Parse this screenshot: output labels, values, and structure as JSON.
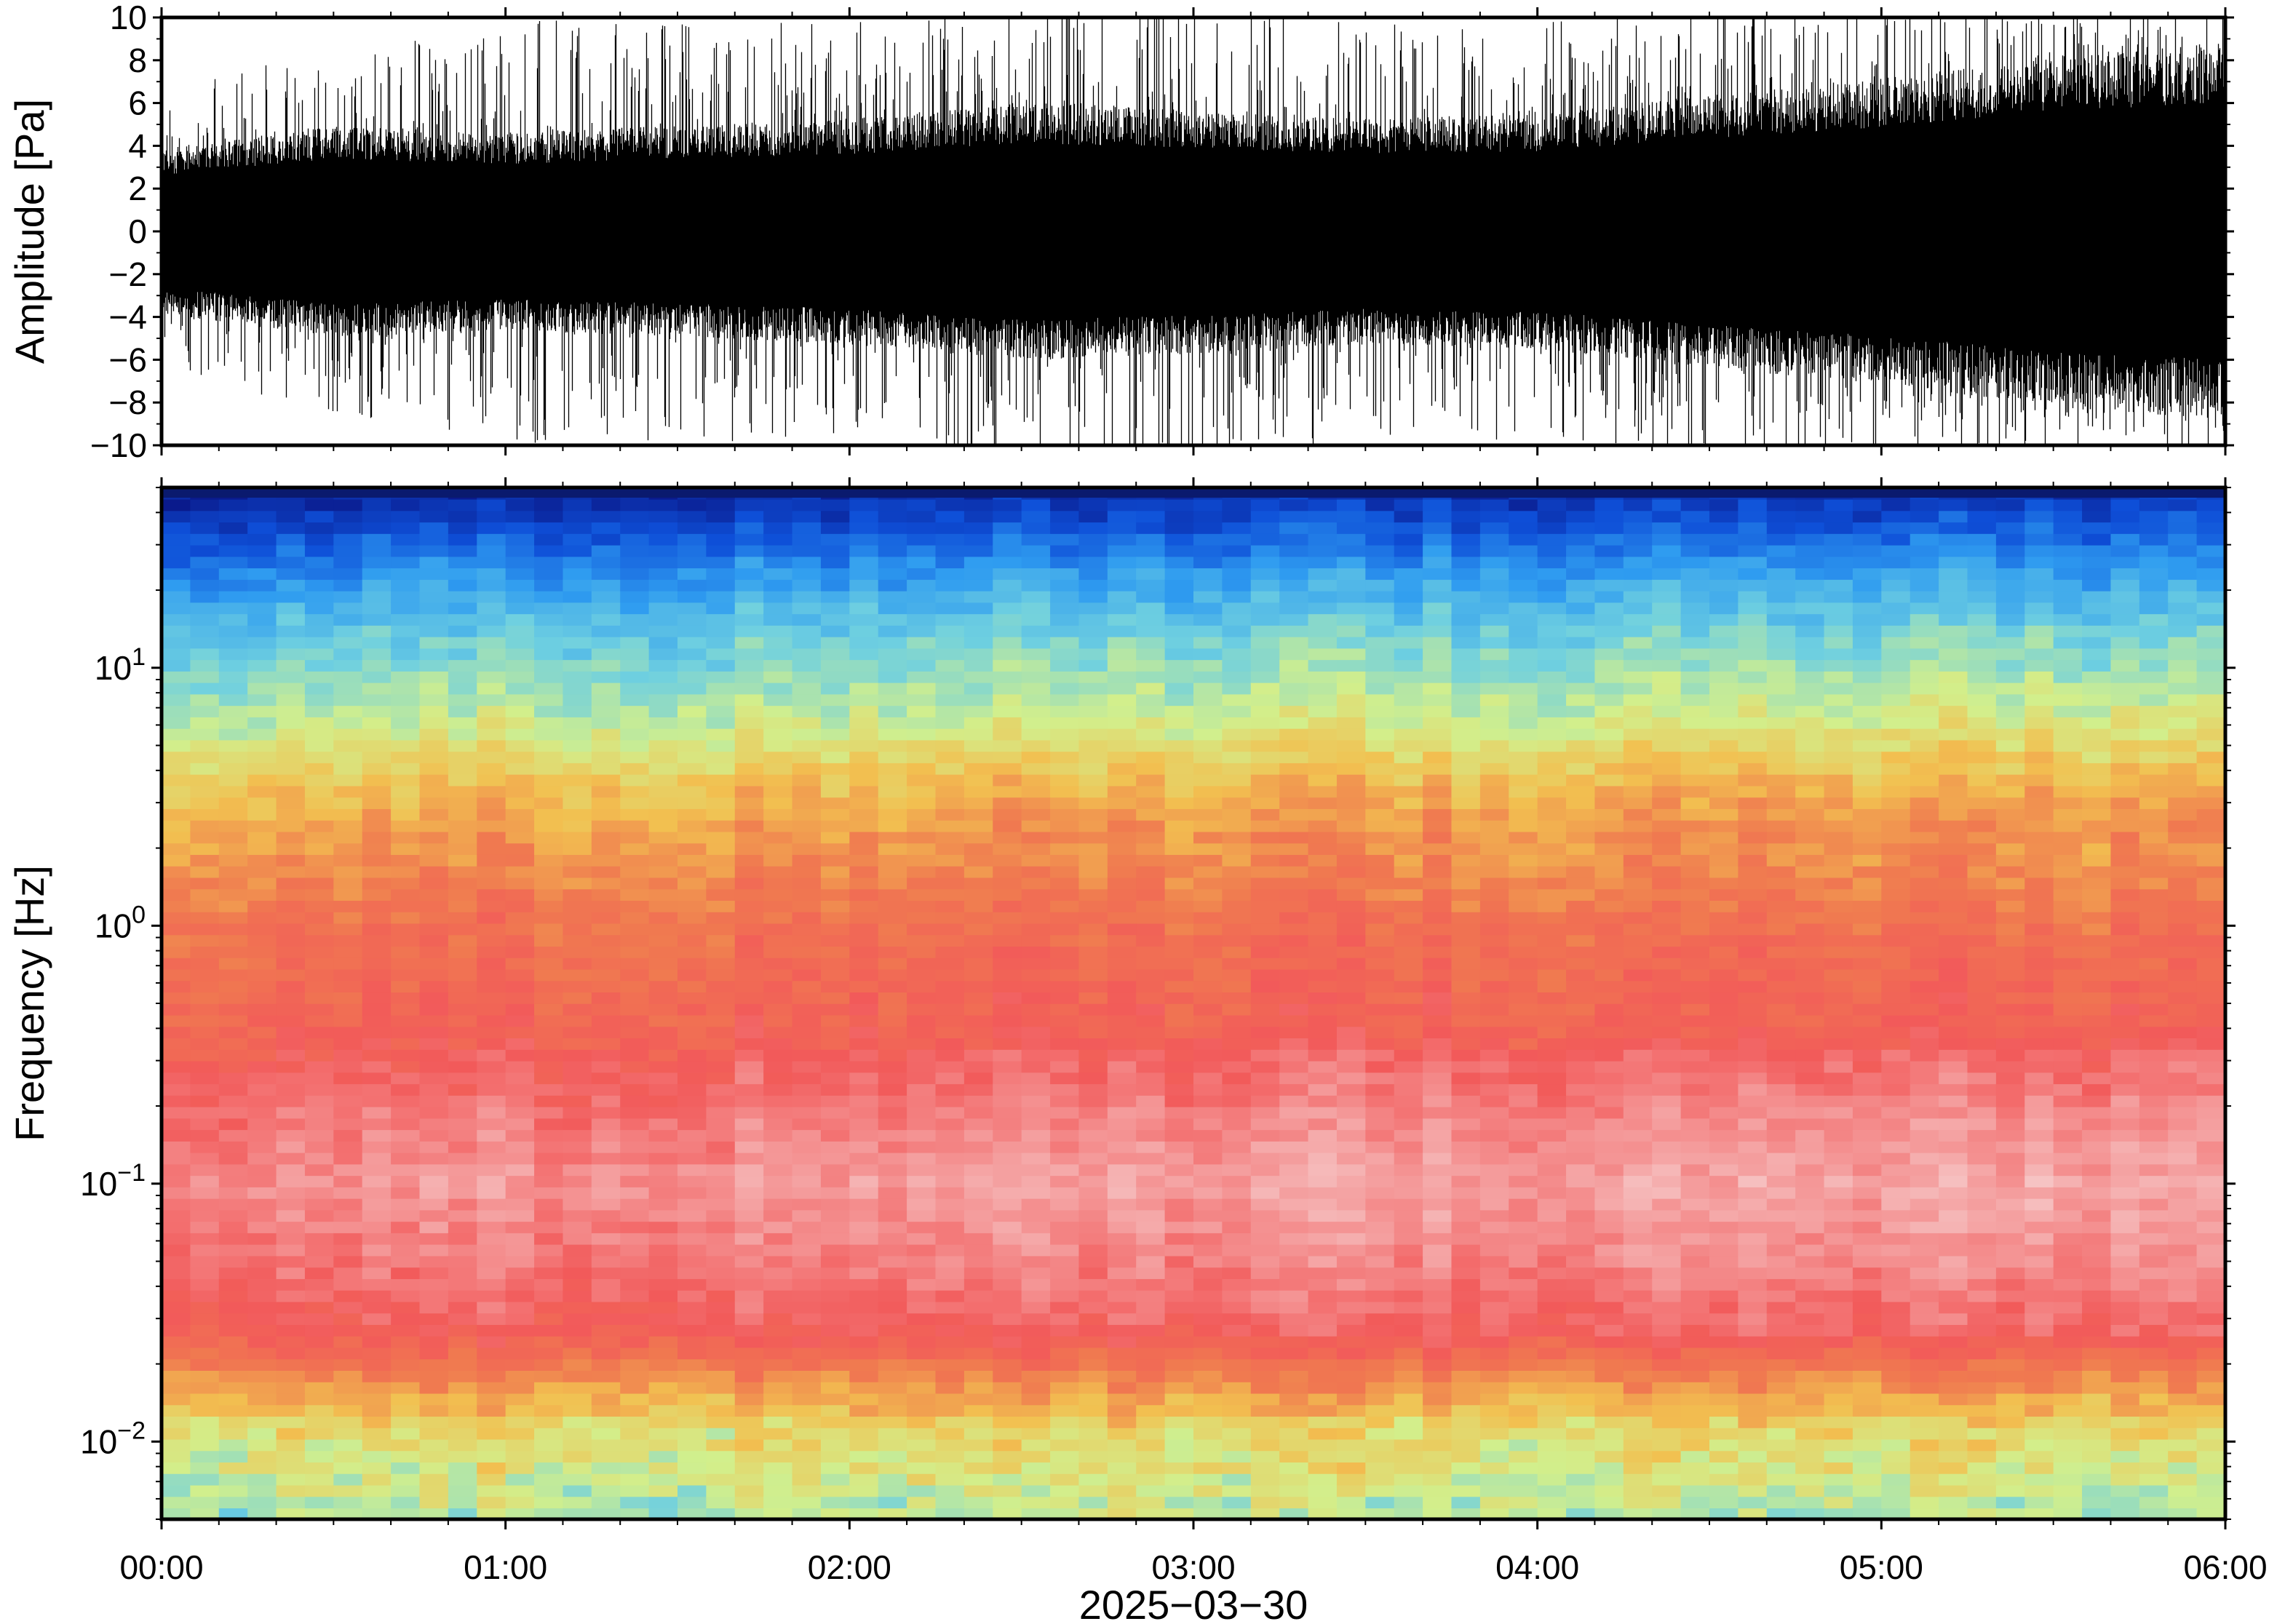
{
  "chart_data": [
    {
      "type": "line",
      "name": "waveform",
      "ylabel": "Amplitude [Pa]",
      "ylim": [
        -10,
        10
      ],
      "y_ticks": [
        "10",
        "8",
        "6",
        "4",
        "2",
        "0",
        "−2",
        "−4",
        "−6",
        "−8",
        "−10"
      ],
      "y_tick_values": [
        10,
        8,
        6,
        4,
        2,
        0,
        -2,
        -4,
        -6,
        -8,
        -10
      ],
      "x_range_hours": [
        0,
        6
      ],
      "line_color": "#000000",
      "envelope_hours": [
        0,
        0.5,
        1.0,
        1.5,
        2.0,
        2.5,
        3.0,
        3.5,
        4.0,
        4.5,
        5.0,
        5.5,
        6.0
      ],
      "envelope_pa": [
        3.5,
        4.5,
        4.2,
        4.5,
        4.8,
        5.5,
        5.2,
        4.8,
        5.0,
        5.8,
        6.5,
        7.5,
        8.0
      ],
      "peak_envelope_pa": [
        6,
        8,
        9,
        9,
        9,
        10,
        10,
        9,
        9,
        10,
        10,
        10,
        10
      ]
    },
    {
      "type": "heatmap",
      "name": "spectrogram",
      "ylabel": "Frequency [Hz]",
      "yscale": "log",
      "ylim_hz": [
        0.005,
        50
      ],
      "y_ticks": [
        {
          "base": "10",
          "exp": "1",
          "value": 10
        },
        {
          "base": "10",
          "exp": "0",
          "value": 1
        },
        {
          "base": "10",
          "exp": "−1",
          "value": 0.1
        },
        {
          "base": "10",
          "exp": "−2",
          "value": 0.01
        }
      ],
      "x_ticks": [
        "00:00",
        "01:00",
        "02:00",
        "03:00",
        "04:00",
        "05:00",
        "06:00"
      ],
      "x_tick_hours": [
        0,
        1,
        2,
        3,
        4,
        5,
        6
      ],
      "xlabel": "2025−03−30",
      "colormap": [
        "#0a1a8c",
        "#0e4fd8",
        "#2f9cf0",
        "#6fd0e0",
        "#d2ef8c",
        "#f2c050",
        "#f07a50",
        "#f25a5a",
        "#f49a9a",
        "#f7d4d4"
      ],
      "freq_color_profile": [
        {
          "log10_hz": 1.7,
          "color": "#1030a8"
        },
        {
          "log10_hz": 1.55,
          "color": "#1e6fe0"
        },
        {
          "log10_hz": 1.35,
          "color": "#3aa8f0"
        },
        {
          "log10_hz": 1.1,
          "color": "#6cd0e4"
        },
        {
          "log10_hz": 0.85,
          "color": "#b4ea9c"
        },
        {
          "log10_hz": 0.7,
          "color": "#e6ec80"
        },
        {
          "log10_hz": 0.5,
          "color": "#f4c25a"
        },
        {
          "log10_hz": 0.25,
          "color": "#f48a52"
        },
        {
          "log10_hz": 0.0,
          "color": "#f26256"
        },
        {
          "log10_hz": -0.4,
          "color": "#f25a5a"
        },
        {
          "log10_hz": -0.7,
          "color": "#f58a8a"
        },
        {
          "log10_hz": -1.0,
          "color": "#f7b4b4"
        },
        {
          "log10_hz": -1.3,
          "color": "#f48686"
        },
        {
          "log10_hz": -1.6,
          "color": "#f25a5a"
        },
        {
          "log10_hz": -1.85,
          "color": "#f5b455"
        },
        {
          "log10_hz": -2.1,
          "color": "#e6e487"
        },
        {
          "log10_hz": -2.3,
          "color": "#c9ec98"
        }
      ]
    }
  ]
}
